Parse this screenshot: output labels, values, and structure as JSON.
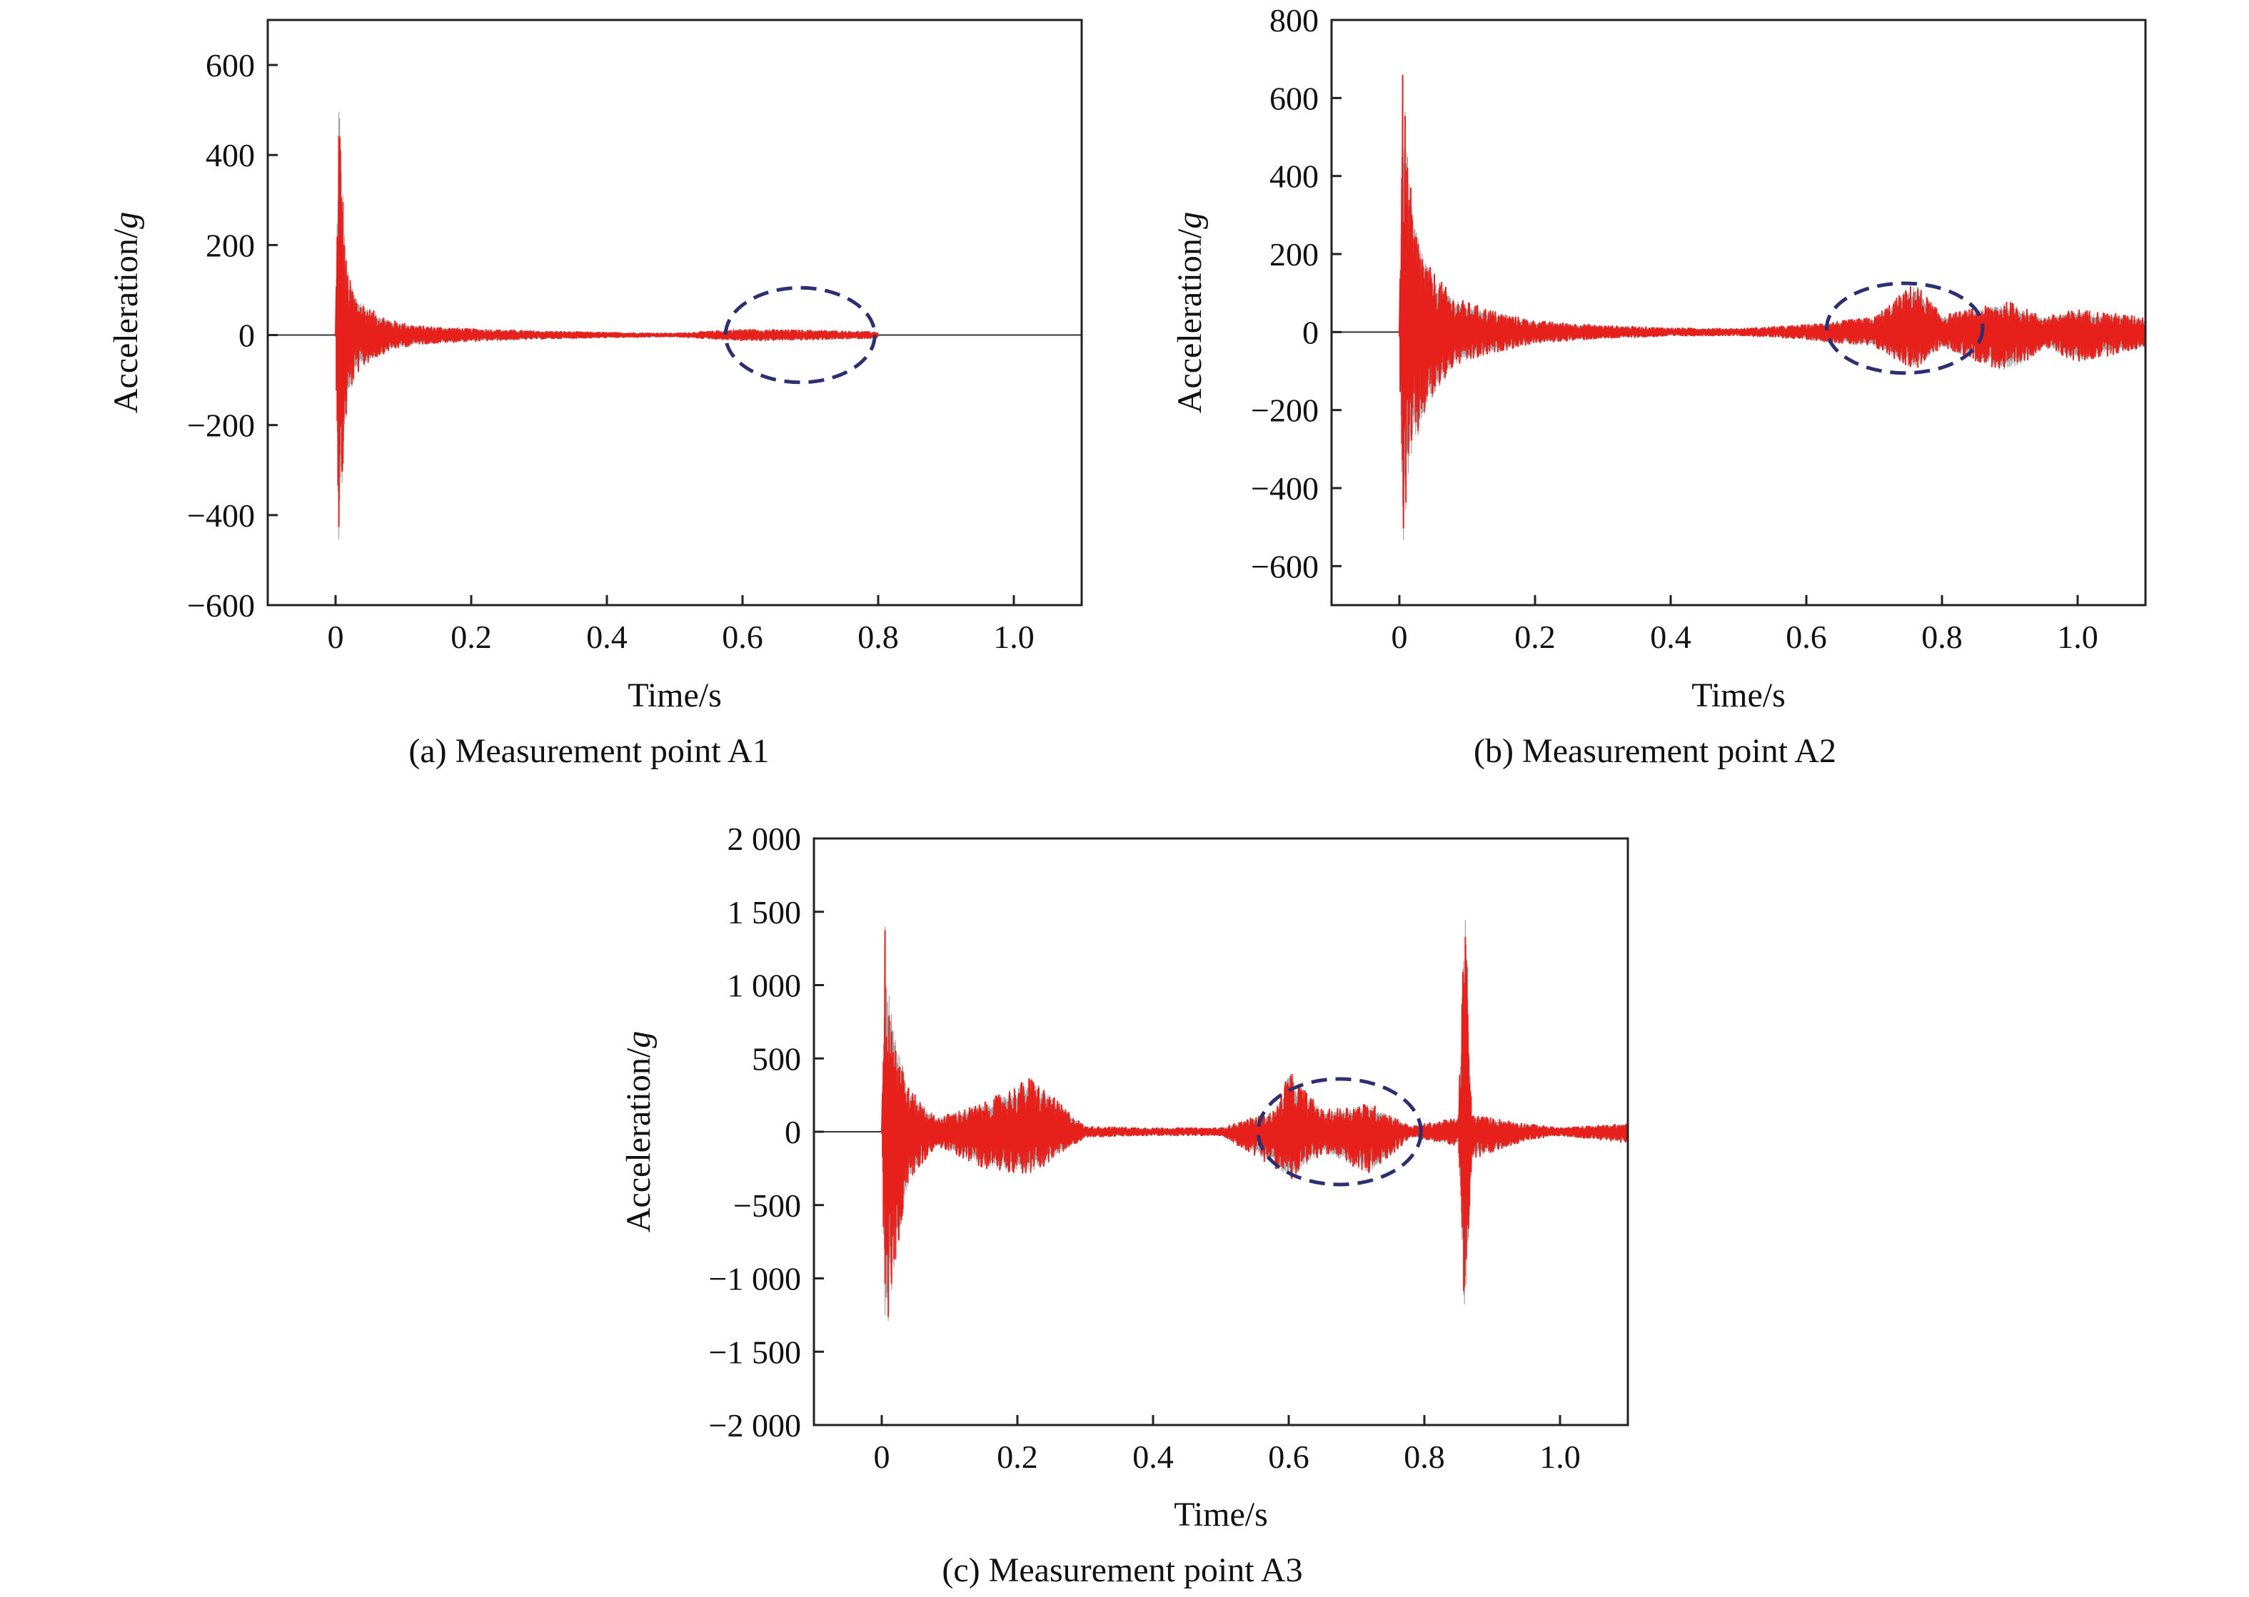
{
  "chart_data": [
    {
      "type": "line",
      "caption": "(a) Measurement point A1",
      "xlabel": "Time/s",
      "ylabel": "Acceleration/",
      "ylabel_unit": "g",
      "xlim": [
        -0.1,
        1.1
      ],
      "ylim": [
        -600,
        700
      ],
      "xticks": [
        0,
        0.2,
        0.4,
        0.6,
        0.8,
        1.0
      ],
      "xtick_labels": [
        "0",
        "0.2",
        "0.4",
        "0.6",
        "0.8",
        "1.0"
      ],
      "yticks": [
        -600,
        -400,
        -200,
        0,
        200,
        400,
        600
      ],
      "ytick_labels": [
        "−600",
        "−400",
        "−200",
        "0",
        "200",
        "400",
        "600"
      ],
      "series": [
        {
          "color": "#e8201c",
          "x": [
            0.0,
            0.005,
            0.01,
            0.015,
            0.02,
            0.03,
            0.05,
            0.08,
            0.12,
            0.2,
            0.3,
            0.4,
            0.5,
            0.6,
            0.7,
            0.8
          ],
          "envelope": [
            5,
            570,
            350,
            180,
            130,
            90,
            60,
            35,
            22,
            15,
            10,
            7,
            5,
            14,
            12,
            8
          ],
          "envelope_min": [
            -5,
            -500,
            -340,
            -200,
            -140,
            -90,
            -60,
            -35,
            -22,
            -15,
            -10,
            -7,
            -5,
            -14,
            -12,
            -8
          ]
        }
      ],
      "annotations": [
        {
          "type": "dashed-ellipse",
          "x_center": 0.685,
          "y_center": 0,
          "x_radius": 0.11,
          "y_radius": 105,
          "color": "#2c3070"
        }
      ]
    },
    {
      "type": "line",
      "caption": "(b) Measurement point A2",
      "xlabel": "Time/s",
      "ylabel": "Acceleration/",
      "ylabel_unit": "g",
      "xlim": [
        -0.1,
        1.1
      ],
      "ylim": [
        -700,
        800
      ],
      "xticks": [
        0,
        0.2,
        0.4,
        0.6,
        0.8,
        1.0
      ],
      "xtick_labels": [
        "0",
        "0.2",
        "0.4",
        "0.6",
        "0.8",
        "1.0"
      ],
      "yticks": [
        -600,
        -400,
        -200,
        0,
        200,
        400,
        600,
        800
      ],
      "ytick_labels": [
        "−600",
        "−400",
        "−200",
        "0",
        "200",
        "400",
        "600",
        "800"
      ],
      "series": [
        {
          "color": "#e8201c",
          "x": [
            0.0,
            0.005,
            0.01,
            0.02,
            0.04,
            0.08,
            0.15,
            0.2,
            0.3,
            0.4,
            0.5,
            0.6,
            0.7,
            0.76,
            0.8,
            0.9,
            0.95,
            1.0,
            1.1
          ],
          "envelope": [
            20,
            690,
            520,
            300,
            180,
            90,
            50,
            30,
            18,
            12,
            10,
            20,
            40,
            130,
            45,
            80,
            40,
            60,
            40
          ],
          "envelope_min": [
            -20,
            -590,
            -460,
            -320,
            -200,
            -90,
            -50,
            -30,
            -18,
            -12,
            -10,
            -20,
            -40,
            -100,
            -40,
            -110,
            -40,
            -80,
            -40
          ]
        }
      ],
      "annotations": [
        {
          "type": "dashed-ellipse",
          "x_center": 0.745,
          "y_center": 10,
          "x_radius": 0.115,
          "y_radius": 115,
          "color": "#2c3070"
        }
      ]
    },
    {
      "type": "line",
      "caption": "(c) Measurement point A3",
      "xlabel": "Time/s",
      "ylabel": "Acceleration/",
      "ylabel_unit": "g",
      "xlim": [
        -0.1,
        1.1
      ],
      "ylim": [
        -2000,
        2000
      ],
      "xticks": [
        0,
        0.2,
        0.4,
        0.6,
        0.8,
        1.0
      ],
      "xtick_labels": [
        "0",
        "0.2",
        "0.4",
        "0.6",
        "0.8",
        "1.0"
      ],
      "yticks": [
        -2000,
        -1500,
        -1000,
        -500,
        0,
        500,
        1000,
        1500,
        2000
      ],
      "ytick_labels": [
        "−2 000",
        "−1 500",
        "−1 000",
        "−500",
        "0",
        "500",
        "1 000",
        "1 500",
        "2 000"
      ],
      "series": [
        {
          "color": "#e8201c",
          "x": [
            0.0,
            0.005,
            0.01,
            0.02,
            0.04,
            0.08,
            0.15,
            0.22,
            0.3,
            0.4,
            0.5,
            0.58,
            0.6,
            0.65,
            0.72,
            0.78,
            0.85,
            0.86,
            0.87,
            0.95,
            1.0,
            1.1
          ],
          "envelope": [
            20,
            1480,
            1100,
            700,
            300,
            100,
            200,
            380,
            40,
            30,
            30,
            150,
            420,
            150,
            200,
            40,
            100,
            1620,
            120,
            60,
            30,
            60
          ],
          "envelope_min": [
            -20,
            -1520,
            -1300,
            -900,
            -350,
            -100,
            -250,
            -300,
            -40,
            -30,
            -30,
            -250,
            -350,
            -150,
            -300,
            -40,
            -100,
            -1400,
            -200,
            -60,
            -30,
            -80
          ]
        }
      ],
      "annotations": [
        {
          "type": "dashed-ellipse",
          "x_center": 0.675,
          "y_center": 0,
          "x_radius": 0.12,
          "y_radius": 360,
          "color": "#2c3070"
        }
      ]
    }
  ]
}
